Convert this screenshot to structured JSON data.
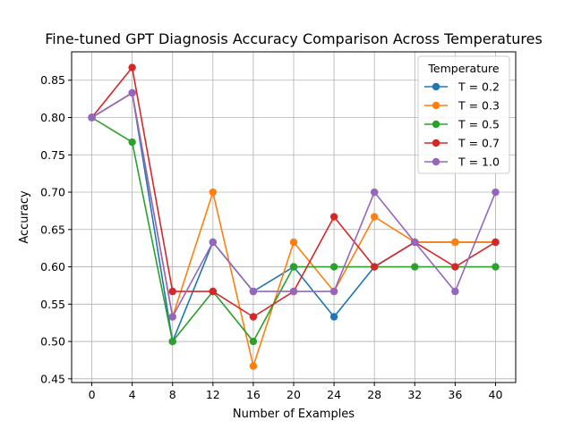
{
  "chart_data": {
    "type": "line",
    "title": "Fine-tuned GPT Diagnosis Accuracy Comparison Across Temperatures",
    "xlabel": "Number of Examples",
    "ylabel": "Accuracy",
    "x": [
      0,
      4,
      8,
      12,
      16,
      20,
      24,
      28,
      32,
      36,
      40
    ],
    "xlim": [
      -2,
      42
    ],
    "ylim": [
      0.445,
      0.888
    ],
    "yticks": [
      "0.45",
      "0.50",
      "0.55",
      "0.60",
      "0.65",
      "0.70",
      "0.75",
      "0.80",
      "0.85"
    ],
    "xticks": [
      "0",
      "4",
      "8",
      "12",
      "16",
      "20",
      "24",
      "28",
      "32",
      "36",
      "40"
    ],
    "grid": true,
    "markers": "circle",
    "legend": {
      "title": "Temperature",
      "placement": "top-right"
    },
    "series": [
      {
        "name": "T = 0.2",
        "color": "#1f77b4",
        "values": [
          0.8,
          0.833,
          0.5,
          0.633,
          0.567,
          0.6,
          0.533,
          0.6,
          0.633,
          0.633,
          0.633
        ]
      },
      {
        "name": "T = 0.3",
        "color": "#ff7f0e",
        "values": [
          0.8,
          0.833,
          0.533,
          0.7,
          0.467,
          0.633,
          0.567,
          0.667,
          0.633,
          0.633,
          0.633
        ]
      },
      {
        "name": "T = 0.5",
        "color": "#2ca02c",
        "values": [
          0.8,
          0.767,
          0.5,
          0.567,
          0.5,
          0.6,
          0.6,
          0.6,
          0.6,
          0.6,
          0.6
        ]
      },
      {
        "name": "T = 0.7",
        "color": "#d62728",
        "values": [
          0.8,
          0.867,
          0.567,
          0.567,
          0.533,
          0.567,
          0.667,
          0.6,
          0.633,
          0.6,
          0.633
        ]
      },
      {
        "name": "T = 1.0",
        "color": "#9467bd",
        "values": [
          0.8,
          0.833,
          0.533,
          0.633,
          0.567,
          0.567,
          0.567,
          0.7,
          0.633,
          0.567,
          0.7
        ]
      }
    ]
  }
}
